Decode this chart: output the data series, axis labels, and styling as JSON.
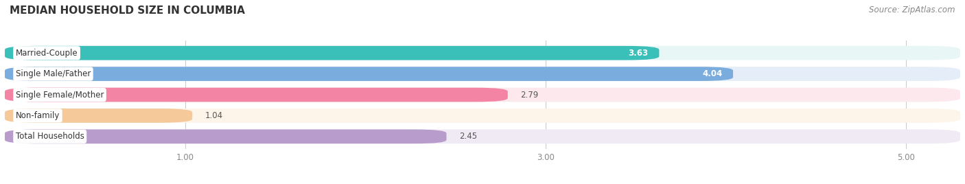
{
  "title": "MEDIAN HOUSEHOLD SIZE IN COLUMBIA",
  "source": "Source: ZipAtlas.com",
  "categories": [
    "Married-Couple",
    "Single Male/Father",
    "Single Female/Mother",
    "Non-family",
    "Total Households"
  ],
  "values": [
    3.63,
    4.04,
    2.79,
    1.04,
    2.45
  ],
  "bar_colors": [
    "#3bbfb9",
    "#7aacdd",
    "#f484a4",
    "#f5c99a",
    "#b89ccc"
  ],
  "bar_bg_colors": [
    "#e8f6f5",
    "#e5eef8",
    "#fce8ed",
    "#fdf4ea",
    "#f0eaf5"
  ],
  "value_inside": [
    true,
    true,
    false,
    false,
    false
  ],
  "xlim_min": 0.0,
  "xlim_max": 5.3,
  "xticks": [
    1.0,
    3.0,
    5.0
  ],
  "xtick_labels": [
    "1.00",
    "3.00",
    "5.00"
  ],
  "background_color": "#ffffff",
  "bar_area_bg": "#f0f0f0",
  "title_fontsize": 11,
  "label_fontsize": 8.5,
  "value_fontsize": 8.5,
  "source_fontsize": 8.5,
  "bar_height": 0.68,
  "bar_gap": 0.32
}
